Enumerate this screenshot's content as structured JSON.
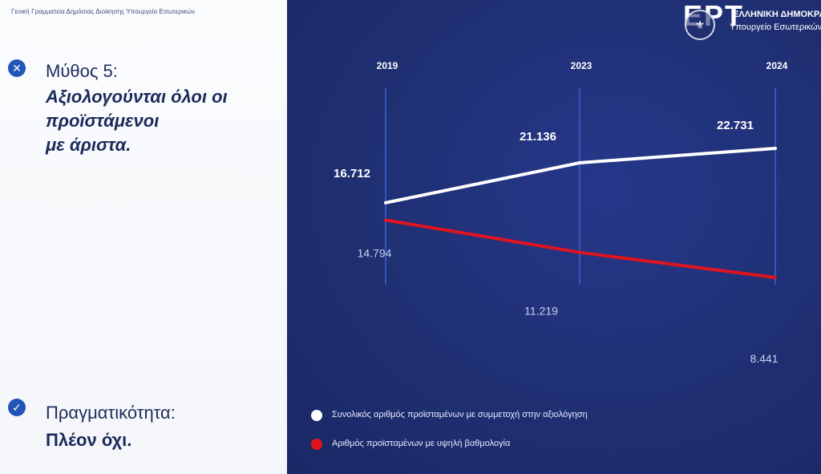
{
  "left_panel": {
    "header": "Γενική Γραμματεία Δημόσιας Διοίκησης Υπουργείο Εσωτερικών",
    "myth": {
      "icon": "close-icon",
      "heading": "Μύθος 5:",
      "statement_lines": [
        "Αξιολογούνται όλοι οι",
        "προϊστάμενοι",
        "με άριστα."
      ]
    },
    "reality": {
      "icon": "check-icon",
      "heading": "Πραγματικότητα:",
      "statement": "Πλέον όχι."
    }
  },
  "logo": {
    "mark": "ΕΡΤ",
    "emblem": "emblem-icon",
    "line1": "ΕΛΛΗΝΙΚΗ ΔΗΜΟΚΡΑΤ",
    "line2": "Υπουργείο Εσωτερικών"
  },
  "colors": {
    "background": "#1f2f6e",
    "series_total": "#ffffff",
    "series_high": "#e0141e",
    "accent_blue": "#2355b8"
  },
  "chart_data": {
    "type": "line",
    "categories": [
      "2019",
      "2023",
      "2024"
    ],
    "series": [
      {
        "name": "Συνολικός αριθμός προϊσταμένων με συμμετοχή στην αξιολόγηση",
        "values": [
          16712,
          21136,
          22731
        ],
        "labels": [
          "16.712",
          "21.136",
          "22.731"
        ],
        "color": "#ffffff"
      },
      {
        "name": "Αριθμός προϊσταμένων με υψηλή βαθμολογία",
        "values": [
          14794,
          11219,
          8441
        ],
        "labels": [
          "14.794",
          "11.219",
          "8.441"
        ],
        "color": "#e0141e"
      }
    ],
    "grid": "vertical lines at each year",
    "legend_position": "bottom-left"
  }
}
